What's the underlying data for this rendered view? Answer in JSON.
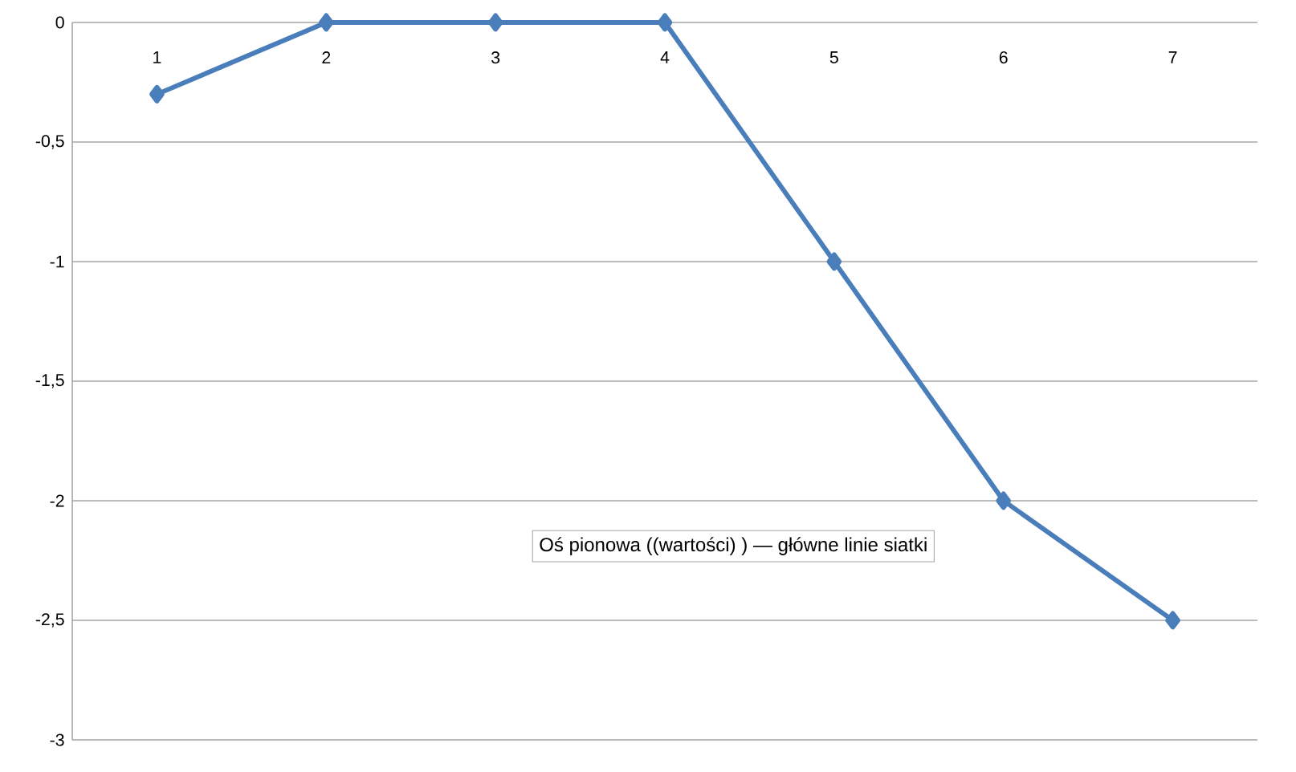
{
  "chart_data": {
    "type": "line",
    "categories": [
      "1",
      "2",
      "3",
      "4",
      "5",
      "6",
      "7"
    ],
    "series": [
      {
        "color": "#4a7ebb",
        "values": [
          -0.3,
          0,
          0,
          0,
          -1,
          -2,
          -2.5
        ]
      }
    ],
    "ylim": [
      -3,
      0
    ],
    "yticks": [
      {
        "value": 0,
        "label": "0"
      },
      {
        "value": -0.5,
        "label": "-0,5"
      },
      {
        "value": -1,
        "label": "-1"
      },
      {
        "value": -1.5,
        "label": "-1,5"
      },
      {
        "value": -2,
        "label": "-2"
      },
      {
        "value": -2.5,
        "label": "-2,5"
      },
      {
        "value": -3,
        "label": "-3"
      }
    ],
    "grid": "y",
    "marker": "diamond",
    "line_style": "solid",
    "annotations": [
      "Oś  pionowa  ((wartości) )  — główne linie siatki"
    ]
  }
}
